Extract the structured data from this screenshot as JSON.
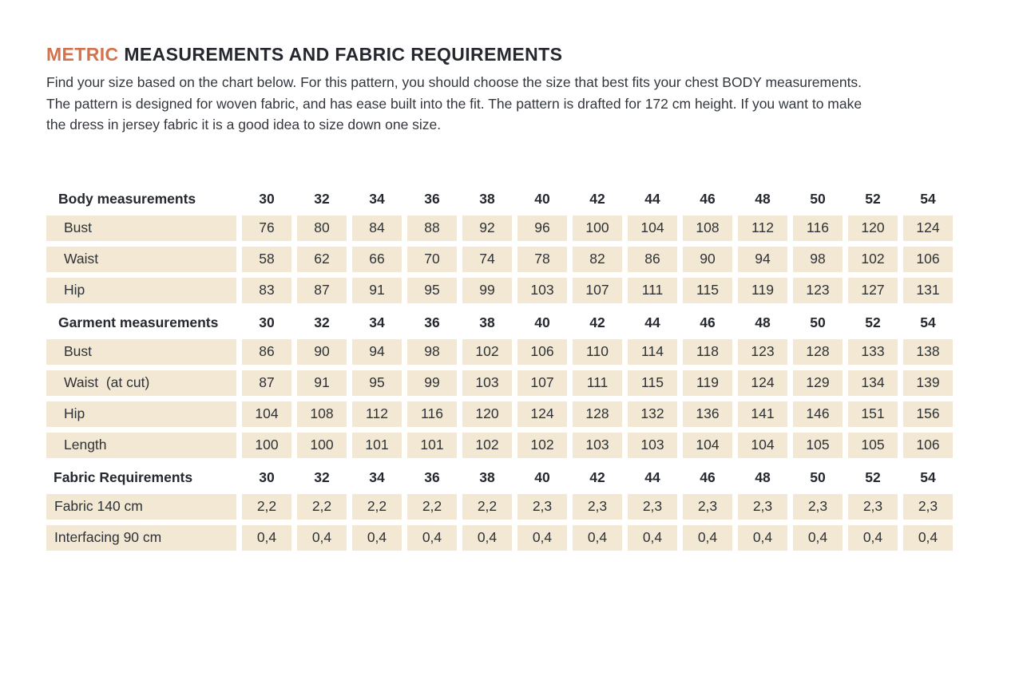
{
  "page": {
    "title_accent": "METRIC",
    "title_rest": " MEASUREMENTS AND FABRIC REQUIREMENTS",
    "intro_lines": [
      "Find your size based on the chart below. For this pattern, you should choose the size that best fits your chest BODY measurements.",
      "The pattern is designed for woven fabric, and has ease built into the fit. The pattern is drafted for 172 cm height. If you want to make",
      "the dress in jersey fabric it is a good idea to size down one size."
    ]
  },
  "colors": {
    "accent": "#d4724d",
    "cell_background": "#f2e8d3",
    "text": "#2e3237"
  },
  "table": {
    "sizes": [
      "30",
      "32",
      "34",
      "36",
      "38",
      "40",
      "42",
      "44",
      "46",
      "48",
      "50",
      "52",
      "54"
    ],
    "sections": [
      {
        "header": "Body measurements",
        "rows": [
          {
            "label": "Bust",
            "values": [
              "76",
              "80",
              "84",
              "88",
              "92",
              "96",
              "100",
              "104",
              "108",
              "112",
              "116",
              "120",
              "124"
            ]
          },
          {
            "label": "Waist",
            "values": [
              "58",
              "62",
              "66",
              "70",
              "74",
              "78",
              "82",
              "86",
              "90",
              "94",
              "98",
              "102",
              "106"
            ]
          },
          {
            "label": "Hip",
            "values": [
              "83",
              "87",
              "91",
              "95",
              "99",
              "103",
              "107",
              "111",
              "115",
              "119",
              "123",
              "127",
              "131"
            ]
          }
        ]
      },
      {
        "header": "Garment measurements",
        "rows": [
          {
            "label": "Bust",
            "values": [
              "86",
              "90",
              "94",
              "98",
              "102",
              "106",
              "110",
              "114",
              "118",
              "123",
              "128",
              "133",
              "138"
            ]
          },
          {
            "label": "Waist  (at cut)",
            "values": [
              "87",
              "91",
              "95",
              "99",
              "103",
              "107",
              "111",
              "115",
              "119",
              "124",
              "129",
              "134",
              "139"
            ]
          },
          {
            "label": "Hip",
            "values": [
              "104",
              "108",
              "112",
              "116",
              "120",
              "124",
              "128",
              "132",
              "136",
              "141",
              "146",
              "151",
              "156"
            ]
          },
          {
            "label": "Length",
            "values": [
              "100",
              "100",
              "101",
              "101",
              "102",
              "102",
              "103",
              "103",
              "104",
              "104",
              "105",
              "105",
              "106"
            ]
          }
        ]
      },
      {
        "header": "Fabric Requirements",
        "rows": [
          {
            "label": "Fabric 140 cm",
            "values": [
              "2,2",
              "2,2",
              "2,2",
              "2,2",
              "2,2",
              "2,3",
              "2,3",
              "2,3",
              "2,3",
              "2,3",
              "2,3",
              "2,3",
              "2,3"
            ]
          },
          {
            "label": "Interfacing 90 cm",
            "values": [
              "0,4",
              "0,4",
              "0,4",
              "0,4",
              "0,4",
              "0,4",
              "0,4",
              "0,4",
              "0,4",
              "0,4",
              "0,4",
              "0,4",
              "0,4"
            ]
          }
        ]
      }
    ]
  }
}
